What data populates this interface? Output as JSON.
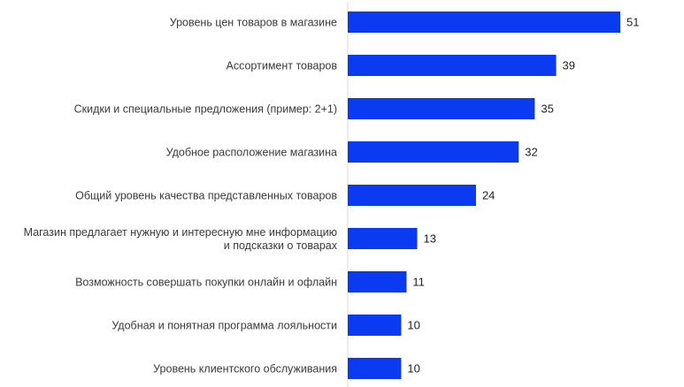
{
  "chart_data": {
    "type": "bar",
    "orientation": "horizontal",
    "title": "",
    "xlabel": "",
    "ylabel": "",
    "categories": [
      "Уровень цен товаров в магазине",
      "Ассортимент товаров",
      "Скидки и специальные предложения (пример: 2+1)",
      "Удобное расположение магазина",
      "Общий уровень качества представленных товаров",
      "Магазин предлагает нужную и интересную мне информацию\nи подсказки о товарах",
      "Возможность совершать покупки онлайн и офлайн",
      "Удобная и понятная программа лояльности",
      "Уровень клиентского обслуживания"
    ],
    "values": [
      51,
      39,
      35,
      32,
      24,
      13,
      11,
      10,
      10
    ],
    "xlim": [
      0,
      51
    ],
    "grid": false,
    "legend": "none",
    "bar_color": "#0b3bf0",
    "data_labels": true
  }
}
